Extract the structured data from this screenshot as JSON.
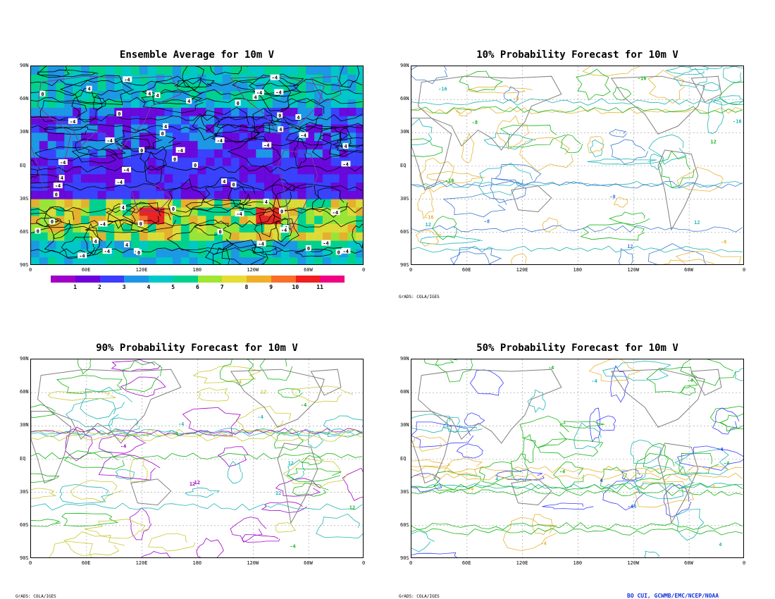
{
  "panels": [
    {
      "id": "p1",
      "title": "Ensemble Average for 10m V",
      "credit": ""
    },
    {
      "id": "p2",
      "title": "10% Probability Forecast for 10m V",
      "credit": "GrADS: COLA/IGES"
    },
    {
      "id": "p3",
      "title": "90% Probability Forecast for 10m V",
      "credit": "GrADS: COLA/IGES"
    },
    {
      "id": "p4",
      "title": "50% Probability Forecast for 10m V",
      "credit": "GrADS: COLA/IGES"
    }
  ],
  "axes": {
    "lat_labels": [
      "90N",
      "60N",
      "30N",
      "EQ",
      "30S",
      "60S",
      "90S"
    ],
    "lon_labels": [
      "0",
      "60E",
      "120E",
      "180",
      "120W",
      "60W",
      "0"
    ]
  },
  "colorbar": {
    "labels": [
      "1",
      "2",
      "3",
      "4",
      "5",
      "6",
      "7",
      "8",
      "9",
      "10",
      "11"
    ],
    "colors": [
      "#a000c8",
      "#6e00dc",
      "#3c3cff",
      "#1e96e6",
      "#00c8c8",
      "#00d28c",
      "#a0e632",
      "#e6dc32",
      "#f0af28",
      "#fa6e28",
      "#f01e1e",
      "#f00082"
    ]
  },
  "contour_labels": {
    "ensemble": [
      "0",
      "-4",
      "4"
    ],
    "prob10": [
      "12",
      "-16",
      "-8"
    ],
    "prob90": [
      "-4",
      "12"
    ],
    "prob50": [
      "4",
      "-4"
    ]
  },
  "producer": "BO CUI, GCWMB/EMC/NCEP/NOAA"
}
